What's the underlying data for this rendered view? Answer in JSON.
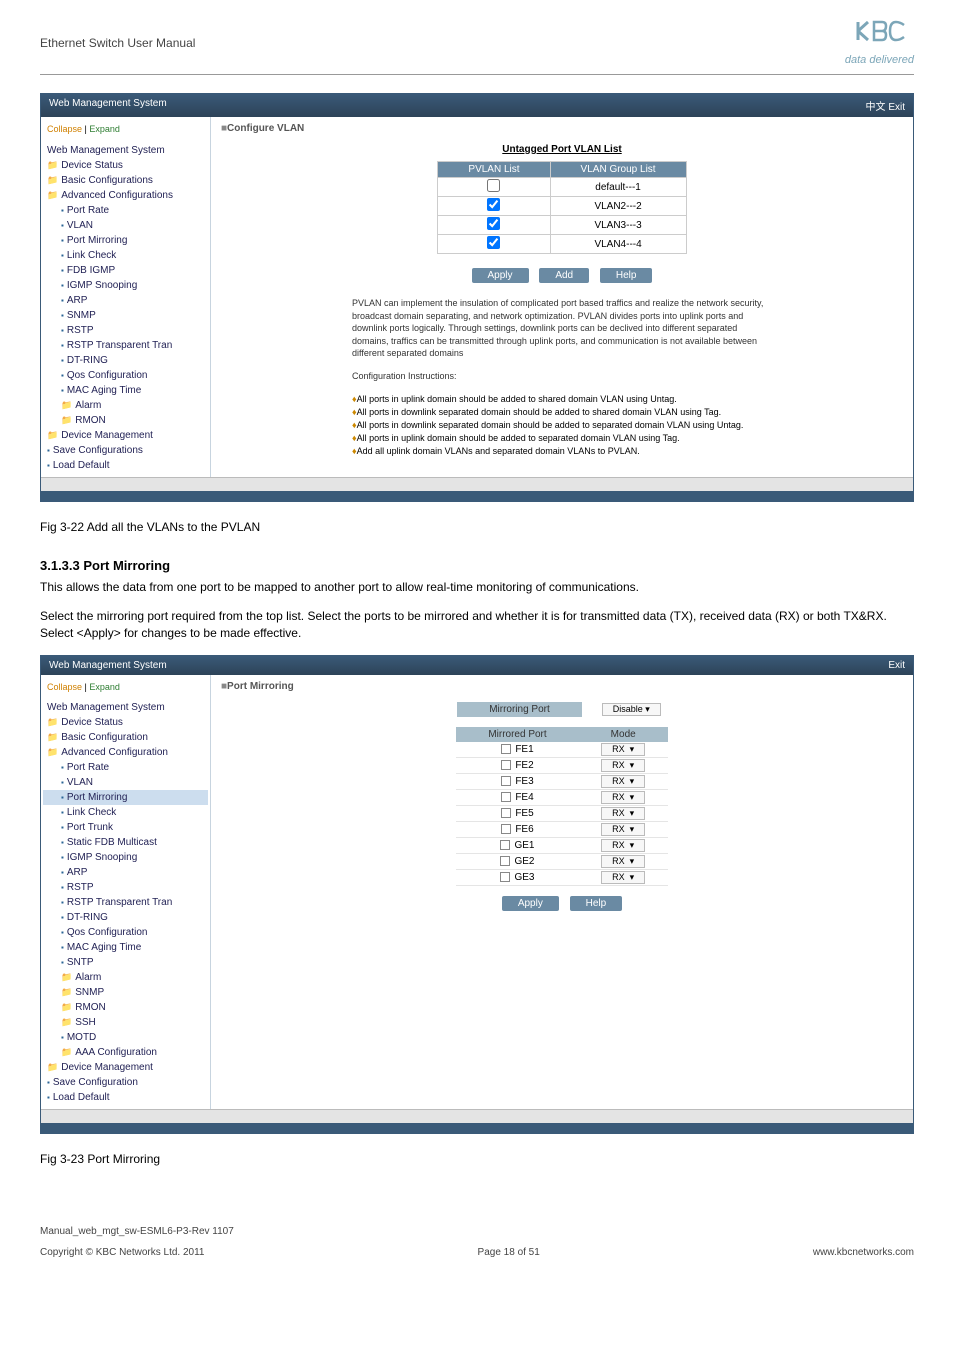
{
  "header": {
    "doc_title": "Ethernet Switch User Manual",
    "logo_tag": "data delivered"
  },
  "screenshot1": {
    "titlebar": "Web Management System",
    "exit_label": "中文 Exit",
    "collapse_label": "Collapse",
    "expand_label": "Expand",
    "panel_title": "Configure VLAN",
    "section_head": "Untagged Port VLAN List",
    "th_pvlan": "PVLAN List",
    "th_group": "VLAN Group List",
    "rows": [
      {
        "chk": false,
        "label": "default---1"
      },
      {
        "chk": true,
        "label": "VLAN2---2"
      },
      {
        "chk": true,
        "label": "VLAN3---3"
      },
      {
        "chk": true,
        "label": "VLAN4---4"
      }
    ],
    "btn_apply": "Apply",
    "btn_add": "Add",
    "btn_help": "Help",
    "desc": "PVLAN can implement the insulation of complicated port based traffics and realize the network security, broadcast domain separating, and network optimization. PVLAN divides ports into uplink ports and downlink ports logically. Through settings, downlink ports can be declived into different separated domains, traffics can be transmitted through uplink ports, and communication is not available between different separated domains",
    "conf_head": "Configuration Instructions:",
    "conf_items": [
      "All ports in uplink domain should be added to shared domain VLAN using Untag.",
      "All ports in downlink separated domain should be added to shared domain VLAN using Tag.",
      "All ports in downlink separated domain should be added to separated domain VLAN using Untag.",
      "All ports in uplink domain should be added to separated domain VLAN using Tag.",
      "Add all uplink domain VLANs and separated domain VLANs to PVLAN."
    ],
    "tree": [
      {
        "cls": "root-icon",
        "label": "Web Management System"
      },
      {
        "cls": "folder",
        "label": "Device Status"
      },
      {
        "cls": "folder",
        "label": "Basic Configurations"
      },
      {
        "cls": "folder",
        "label": "Advanced Configurations"
      },
      {
        "cls": "page indent1",
        "label": "Port Rate"
      },
      {
        "cls": "page indent1",
        "label": "VLAN"
      },
      {
        "cls": "page indent1",
        "label": "Port Mirroring"
      },
      {
        "cls": "page indent1",
        "label": "Link Check"
      },
      {
        "cls": "page indent1",
        "label": "FDB IGMP"
      },
      {
        "cls": "page indent1",
        "label": "IGMP Snooping"
      },
      {
        "cls": "page indent1",
        "label": "ARP"
      },
      {
        "cls": "page indent1",
        "label": "SNMP"
      },
      {
        "cls": "page indent1",
        "label": "RSTP"
      },
      {
        "cls": "page indent1",
        "label": "RSTP Transparent Tran"
      },
      {
        "cls": "page indent1",
        "label": "DT-RING"
      },
      {
        "cls": "page indent1",
        "label": "Qos Configuration"
      },
      {
        "cls": "page indent1",
        "label": "MAC Aging Time"
      },
      {
        "cls": "folder indent1",
        "label": "Alarm"
      },
      {
        "cls": "folder indent1",
        "label": "RMON"
      },
      {
        "cls": "folder",
        "label": "Device Management"
      },
      {
        "cls": "page",
        "label": "Save Configurations"
      },
      {
        "cls": "page",
        "label": "Load Default"
      }
    ]
  },
  "caption1": "Fig 3-22 Add all the VLANs to the PVLAN",
  "section_heading": "3.1.3.3 Port Mirroring",
  "para1": "This allows the data from one port to be mapped to another port to allow real-time monitoring of communications.",
  "para2": "Select the mirroring port required from the top list. Select the ports to be mirrored and whether it is for transmitted data (TX), received data (RX) or both TX&RX. Select <Apply> for changes to be made effective.",
  "screenshot2": {
    "titlebar": "Web Management System",
    "exit_label": "Exit",
    "panel_title": "Port Mirroring",
    "th_mirroring_port": "Mirroring Port",
    "disable_label": "Disable",
    "th_mirrored": "Mirrored Port",
    "th_mode": "Mode",
    "ports": [
      "FE1",
      "FE2",
      "FE3",
      "FE4",
      "FE5",
      "FE6",
      "GE1",
      "GE2",
      "GE3"
    ],
    "mode_label": "RX",
    "btn_apply": "Apply",
    "btn_help": "Help",
    "tree": [
      {
        "cls": "root-icon",
        "label": "Web Management System"
      },
      {
        "cls": "folder",
        "label": "Device Status"
      },
      {
        "cls": "folder",
        "label": "Basic Configuration"
      },
      {
        "cls": "folder",
        "label": "Advanced Configuration"
      },
      {
        "cls": "page indent1",
        "label": "Port Rate"
      },
      {
        "cls": "page indent1",
        "label": "VLAN"
      },
      {
        "cls": "page indent1 selected",
        "label": "Port Mirroring"
      },
      {
        "cls": "page indent1",
        "label": "Link Check"
      },
      {
        "cls": "page indent1",
        "label": "Port Trunk"
      },
      {
        "cls": "page indent1",
        "label": "Static FDB Multicast"
      },
      {
        "cls": "page indent1",
        "label": "IGMP Snooping"
      },
      {
        "cls": "page indent1",
        "label": "ARP"
      },
      {
        "cls": "page indent1",
        "label": "RSTP"
      },
      {
        "cls": "page indent1",
        "label": "RSTP Transparent Tran"
      },
      {
        "cls": "page indent1",
        "label": "DT-RING"
      },
      {
        "cls": "page indent1",
        "label": "Qos Configuration"
      },
      {
        "cls": "page indent1",
        "label": "MAC Aging Time"
      },
      {
        "cls": "page indent1",
        "label": "SNTP"
      },
      {
        "cls": "folder indent1",
        "label": "Alarm"
      },
      {
        "cls": "folder indent1",
        "label": "SNMP"
      },
      {
        "cls": "folder indent1",
        "label": "RMON"
      },
      {
        "cls": "folder indent1",
        "label": "SSH"
      },
      {
        "cls": "page indent1",
        "label": "MOTD"
      },
      {
        "cls": "folder indent1",
        "label": "AAA Configuration"
      },
      {
        "cls": "folder",
        "label": "Device Management"
      },
      {
        "cls": "page",
        "label": "Save Configuration"
      },
      {
        "cls": "page",
        "label": "Load Default"
      }
    ]
  },
  "caption2": "Fig 3-23 Port Mirroring",
  "footer": {
    "manual_id": "Manual_web_mgt_sw-ESML6-P3-Rev 1107",
    "copyright": "Copyright © KBC Networks Ltd. 2011",
    "page": "Page 18 of 51",
    "url": "www.kbcnetworks.com"
  }
}
